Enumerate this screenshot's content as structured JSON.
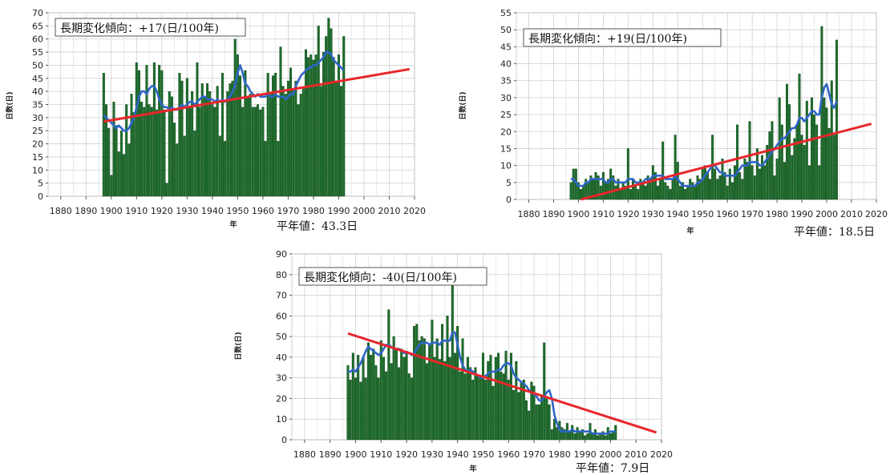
{
  "chart_data": [
    {
      "type": "bar",
      "annotation": "長期変化傾向：+17(日/100年)",
      "xlabel": "年",
      "ylabel": "日数(日)",
      "mean_label": "平年値：43.3日",
      "xlim": [
        1875,
        2020
      ],
      "ylim": [
        0,
        70
      ],
      "xticks": [
        1880,
        1890,
        1900,
        1910,
        1920,
        1930,
        1940,
        1950,
        1960,
        1970,
        1980,
        1990,
        2000,
        2010,
        2020
      ],
      "yticks": [
        0,
        5,
        10,
        15,
        20,
        25,
        30,
        35,
        40,
        45,
        50,
        55,
        60,
        65,
        70
      ],
      "grid": true,
      "bar_color": "#1b6e2a",
      "smooth_color": "#2f66c8",
      "trend_color": "#e8262b",
      "years_start": 1897,
      "values": [
        47,
        35,
        26,
        8,
        36,
        27,
        17,
        25,
        16,
        35,
        20,
        39,
        32,
        51,
        48,
        36,
        34,
        50,
        35,
        34,
        51,
        33,
        50,
        48,
        33,
        5,
        40,
        38,
        28,
        20,
        47,
        44,
        23,
        45,
        34,
        40,
        25,
        51,
        34,
        43,
        38,
        43,
        40,
        35,
        34,
        42,
        23,
        47,
        21,
        40,
        43,
        44,
        60,
        54,
        46,
        34,
        48,
        38,
        39,
        34,
        34,
        35,
        33,
        34,
        21,
        47,
        39,
        46,
        47,
        21,
        57,
        42,
        39,
        44,
        49,
        41,
        44,
        35,
        39,
        41,
        56,
        53,
        54,
        52,
        54,
        65,
        42,
        55,
        61,
        68,
        64,
        53,
        44,
        54,
        42,
        61
      ],
      "smooth": [
        31,
        30,
        29,
        28,
        27,
        26,
        27,
        26,
        25,
        25,
        26,
        28,
        30,
        34,
        38,
        40,
        40,
        39,
        41,
        42,
        42,
        40,
        37,
        35,
        34,
        34,
        33,
        34,
        33,
        33,
        34,
        35,
        34,
        35,
        36,
        36,
        35,
        36,
        37,
        38,
        38,
        37,
        37,
        37,
        36,
        37,
        36,
        37,
        36,
        37,
        38,
        40,
        42,
        47,
        50,
        47,
        43,
        42,
        40,
        39,
        38,
        39,
        38,
        38,
        38,
        39,
        38,
        38,
        39,
        38,
        38,
        38,
        37,
        38,
        39,
        39,
        42,
        44,
        46,
        47,
        48,
        49,
        49,
        50,
        50,
        51,
        52,
        53,
        55,
        55,
        54,
        52,
        51,
        50,
        49,
        48
      ],
      "trend": {
        "x": [
          1897,
          2018
        ],
        "y": [
          28.5,
          48.5
        ]
      }
    },
    {
      "type": "bar",
      "annotation": "長期変化傾向：+19(日/100年)",
      "xlabel": "年",
      "ylabel": "日数(日)",
      "mean_label": "平年値：18.5日",
      "xlim": [
        1875,
        2020
      ],
      "ylim": [
        0,
        55
      ],
      "xticks": [
        1880,
        1890,
        1900,
        1910,
        1920,
        1930,
        1940,
        1950,
        1960,
        1970,
        1980,
        1990,
        2000,
        2010,
        2020
      ],
      "yticks": [
        0,
        5,
        10,
        15,
        20,
        25,
        30,
        35,
        40,
        45,
        50,
        55
      ],
      "grid": true,
      "bar_color": "#1b6e2a",
      "smooth_color": "#2f66c8",
      "trend_color": "#e8262b",
      "years_start": 1897,
      "values": [
        5,
        9,
        9,
        5,
        3,
        4,
        6,
        5,
        7,
        6,
        8,
        7,
        4,
        8,
        5,
        6,
        9,
        7,
        4,
        6,
        3,
        5,
        4,
        15,
        3,
        6,
        4,
        3,
        6,
        5,
        4,
        7,
        6,
        10,
        8,
        4,
        6,
        17,
        5,
        4,
        3,
        6,
        19,
        11,
        4,
        5,
        3,
        4,
        6,
        5,
        4,
        7,
        6,
        9,
        10,
        8,
        6,
        19,
        9,
        6,
        7,
        12,
        8,
        4,
        9,
        5,
        10,
        22,
        8,
        6,
        12,
        11,
        23,
        10,
        7,
        15,
        9,
        13,
        10,
        16,
        20,
        23,
        7,
        12,
        30,
        22,
        11,
        34,
        28,
        13,
        18,
        22,
        37,
        19,
        16,
        29,
        10,
        30,
        25,
        22,
        10,
        51,
        30,
        27,
        21,
        35,
        19,
        47
      ],
      "smooth": [
        6,
        6,
        5,
        4,
        4,
        4,
        5,
        5,
        6,
        6,
        6,
        6,
        6,
        6,
        5,
        5,
        6,
        6,
        5,
        5,
        5,
        5,
        5,
        6,
        6,
        6,
        5,
        5,
        5,
        5,
        6,
        6,
        6,
        7,
        7,
        7,
        7,
        7,
        6,
        6,
        6,
        6,
        7,
        6,
        5,
        4,
        4,
        4,
        4,
        4,
        4,
        5,
        5,
        6,
        7,
        8,
        9,
        10,
        10,
        9,
        8,
        8,
        7,
        7,
        7,
        7,
        7,
        8,
        9,
        10,
        10,
        10,
        11,
        11,
        11,
        11,
        10,
        10,
        11,
        12,
        13,
        14,
        15,
        16,
        17,
        18,
        18,
        19,
        20,
        21,
        21,
        22,
        24,
        24,
        23,
        24,
        25,
        26,
        26,
        25,
        25,
        30,
        33,
        34,
        31,
        28,
        27,
        29
      ],
      "trend": {
        "x": [
          1901,
          2018
        ],
        "y": [
          0,
          22.3
        ]
      }
    },
    {
      "type": "bar",
      "annotation": "長期変化傾向：-40(日/100年)",
      "xlabel": "年",
      "ylabel": "日数(日)",
      "mean_label": "平年値：7.9日",
      "xlim": [
        1875,
        2020
      ],
      "ylim": [
        0,
        90
      ],
      "xticks": [
        1880,
        1890,
        1900,
        1910,
        1920,
        1930,
        1940,
        1950,
        1960,
        1970,
        1980,
        1990,
        2000,
        2010,
        2020
      ],
      "yticks": [
        0,
        10,
        20,
        30,
        40,
        50,
        60,
        70,
        80,
        90
      ],
      "grid": true,
      "bar_color": "#1b6e2a",
      "smooth_color": "#2f66c8",
      "trend_color": "#e8262b",
      "years_start": 1897,
      "values": [
        36,
        29,
        42,
        30,
        41,
        28,
        40,
        30,
        47,
        41,
        44,
        36,
        30,
        48,
        40,
        33,
        63,
        37,
        50,
        44,
        35,
        44,
        40,
        43,
        32,
        30,
        55,
        56,
        48,
        50,
        49,
        37,
        46,
        58,
        40,
        49,
        39,
        56,
        38,
        60,
        40,
        75,
        42,
        55,
        33,
        49,
        32,
        40,
        35,
        29,
        35,
        31,
        30,
        42,
        29,
        38,
        41,
        26,
        40,
        42,
        33,
        32,
        43,
        29,
        42,
        24,
        38,
        23,
        28,
        29,
        19,
        14,
        28,
        26,
        17,
        17,
        21,
        47,
        21,
        17,
        5,
        10,
        6,
        9,
        6,
        5,
        8,
        4,
        7,
        3,
        6,
        4,
        5,
        2,
        3,
        8,
        3,
        5,
        2,
        3,
        4,
        2,
        6,
        3,
        4,
        7
      ],
      "smooth": [
        33,
        33,
        34,
        33,
        35,
        37,
        40,
        43,
        45,
        44,
        43,
        42,
        41,
        42,
        44,
        46,
        46,
        45,
        44,
        44,
        44,
        43,
        42,
        42,
        42,
        41,
        42,
        44,
        46,
        47,
        47,
        47,
        46,
        47,
        47,
        47,
        46,
        48,
        48,
        48,
        48,
        52,
        52,
        46,
        40,
        36,
        34,
        33,
        34,
        33,
        32,
        31,
        30,
        30,
        31,
        32,
        33,
        33,
        33,
        34,
        34,
        36,
        37,
        37,
        36,
        32,
        30,
        29,
        28,
        27,
        26,
        24,
        23,
        22,
        21,
        19,
        19,
        21,
        23,
        24,
        20,
        12,
        8,
        5,
        4,
        4,
        4,
        4,
        5,
        4,
        4,
        4,
        4,
        4,
        4,
        4,
        3,
        3,
        3,
        3,
        3,
        3,
        3,
        4,
        4,
        4
      ],
      "trend": {
        "x": [
          1897,
          2018
        ],
        "y": [
          51.5,
          3.5
        ]
      }
    }
  ]
}
